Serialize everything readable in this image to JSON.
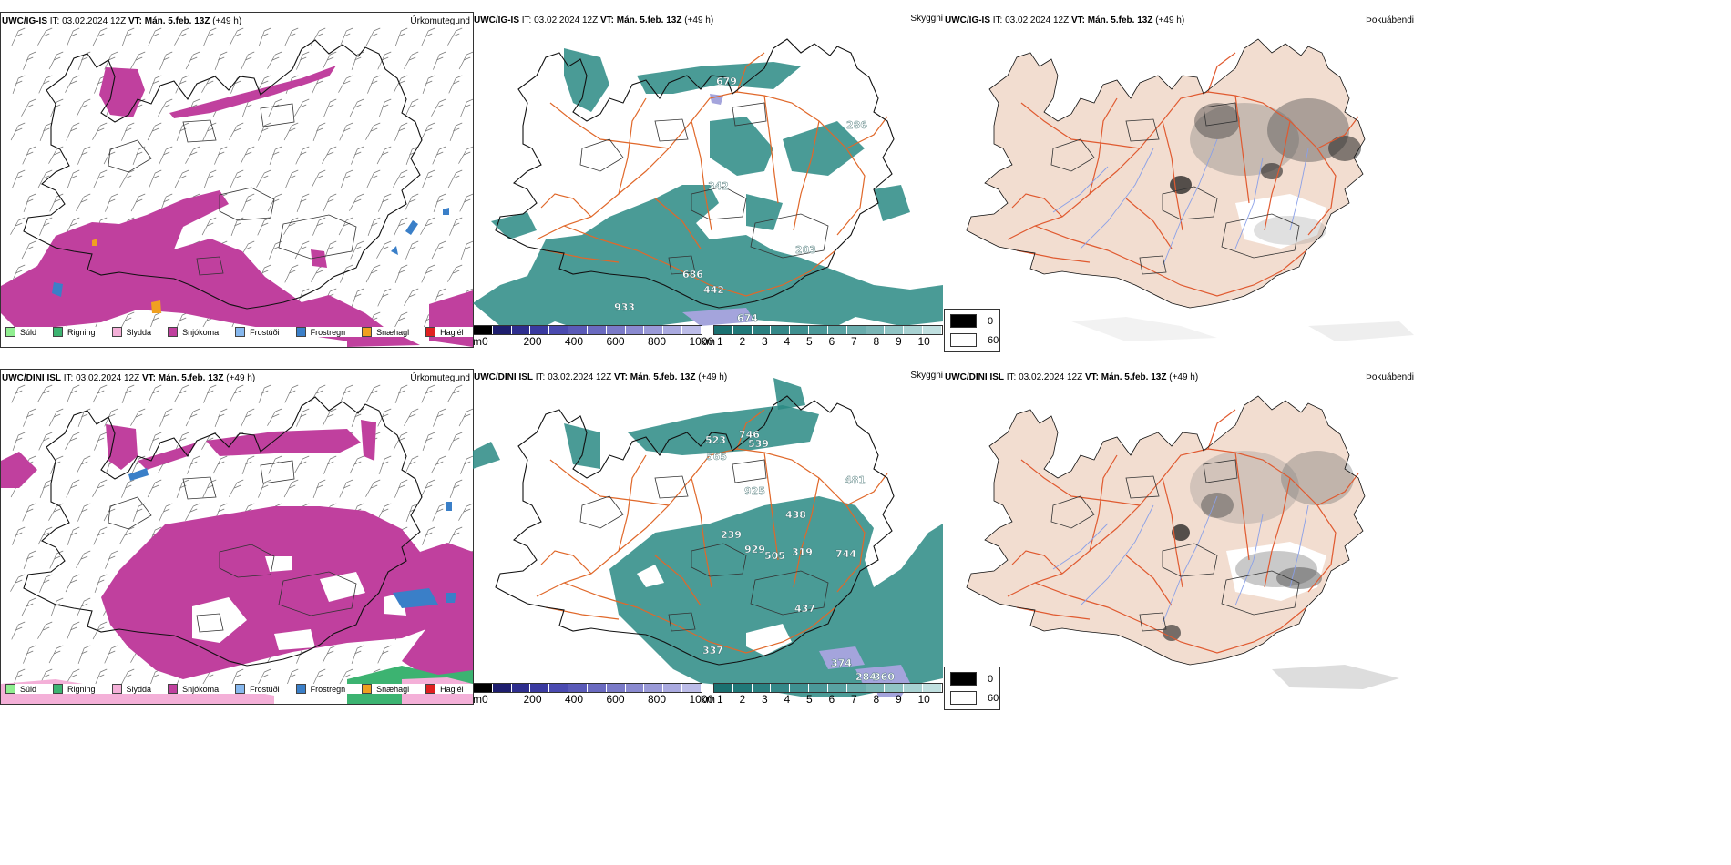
{
  "panels": {
    "p1": {
      "model": "UWC/IG-IS",
      "it": "IT: 03.02.2024 12Z",
      "vt_label": "VT:",
      "vt": "Mán. 5.feb. 13Z",
      "lead": "(+49 h)",
      "right": "Úrkomutegund"
    },
    "p2": {
      "model": "UWC/IG-IS",
      "it": "IT: 03.02.2024 12Z",
      "vt_label": "VT:",
      "vt": "Mán. 5.feb. 13Z",
      "lead": "(+49 h)",
      "right": "Skyggni"
    },
    "p3": {
      "model": "UWC/IG-IS",
      "it": "IT: 03.02.2024 12Z",
      "vt_label": "VT:",
      "vt": "Mán. 5.feb. 13Z",
      "lead": "(+49 h)",
      "right": "Þokuábendi"
    },
    "p4": {
      "model": "UWC/DINI ISL",
      "it": "IT: 03.02.2024 12Z",
      "vt_label": "VT:",
      "vt": "Mán. 5.feb. 13Z",
      "lead": "(+49 h)",
      "right": "Úrkomutegund"
    },
    "p5": {
      "model": "UWC/DINI ISL",
      "it": "IT: 03.02.2024 12Z",
      "vt_label": "VT:",
      "vt": "Mán. 5.feb. 13Z",
      "lead": "(+49 h)",
      "right": "Skyggni"
    },
    "p6": {
      "model": "UWC/DINI ISL",
      "it": "IT: 03.02.2024 12Z",
      "vt_label": "VT:",
      "vt": "Mán. 5.feb. 13Z",
      "lead": "(+49 h)",
      "right": "Þokuábendi"
    }
  },
  "precip_legend": [
    {
      "label": "Súld",
      "color": "#90ee90"
    },
    {
      "label": "Rigning",
      "color": "#3cb371"
    },
    {
      "label": "Slydda",
      "color": "#f4b0d8"
    },
    {
      "label": "Snjókoma",
      "color": "#c0409e"
    },
    {
      "label": "Frostúði",
      "color": "#87b8ee"
    },
    {
      "label": "Frostregn",
      "color": "#3a7fc8"
    },
    {
      "label": "Snæhagl",
      "color": "#f0a020"
    },
    {
      "label": "Haglél",
      "color": "#e02020"
    }
  ],
  "visibility_scale": {
    "m_unit": "m",
    "m_ticks": [
      "0",
      "200",
      "400",
      "600",
      "800",
      "1000"
    ],
    "km_unit": "km",
    "km_ticks": [
      "1",
      "2",
      "3",
      "4",
      "5",
      "6",
      "7",
      "8",
      "9",
      "10"
    ],
    "m_colors": [
      "#000000",
      "#1e1e6e",
      "#2e2e8e",
      "#3a3aa0",
      "#4a4ab0",
      "#5a5ab8",
      "#6a6ac0",
      "#7a7ac8",
      "#8a8ad0",
      "#9a9ad8",
      "#aaaae0",
      "#bcbce8"
    ],
    "km_colors": [
      "#1a7070",
      "#207878",
      "#2a8080",
      "#348888",
      "#3e9090",
      "#4a9898",
      "#58a2a2",
      "#68acac",
      "#7ab6b6",
      "#90c4c4",
      "#a8d2d2",
      "#c0e0e0"
    ]
  },
  "fog_legend": {
    "values": [
      "0",
      "60"
    ],
    "colors": [
      "#000000",
      "#ffffff"
    ]
  },
  "visibility_labels": {
    "top": [
      "679",
      "342",
      "286",
      "203",
      "686",
      "442",
      "933",
      "674"
    ],
    "bottom": [
      "523",
      "746",
      "539",
      "565",
      "925",
      "481",
      "438",
      "239",
      "929",
      "505",
      "319",
      "744",
      "437",
      "337",
      "374",
      "284",
      "360"
    ]
  },
  "colors": {
    "snow": "#c0409e",
    "visibility": "#2a8a84",
    "land": "#f2ddd0",
    "roads": "#e0682a",
    "rivers": "#8aa0e8",
    "coast": "#111111"
  }
}
